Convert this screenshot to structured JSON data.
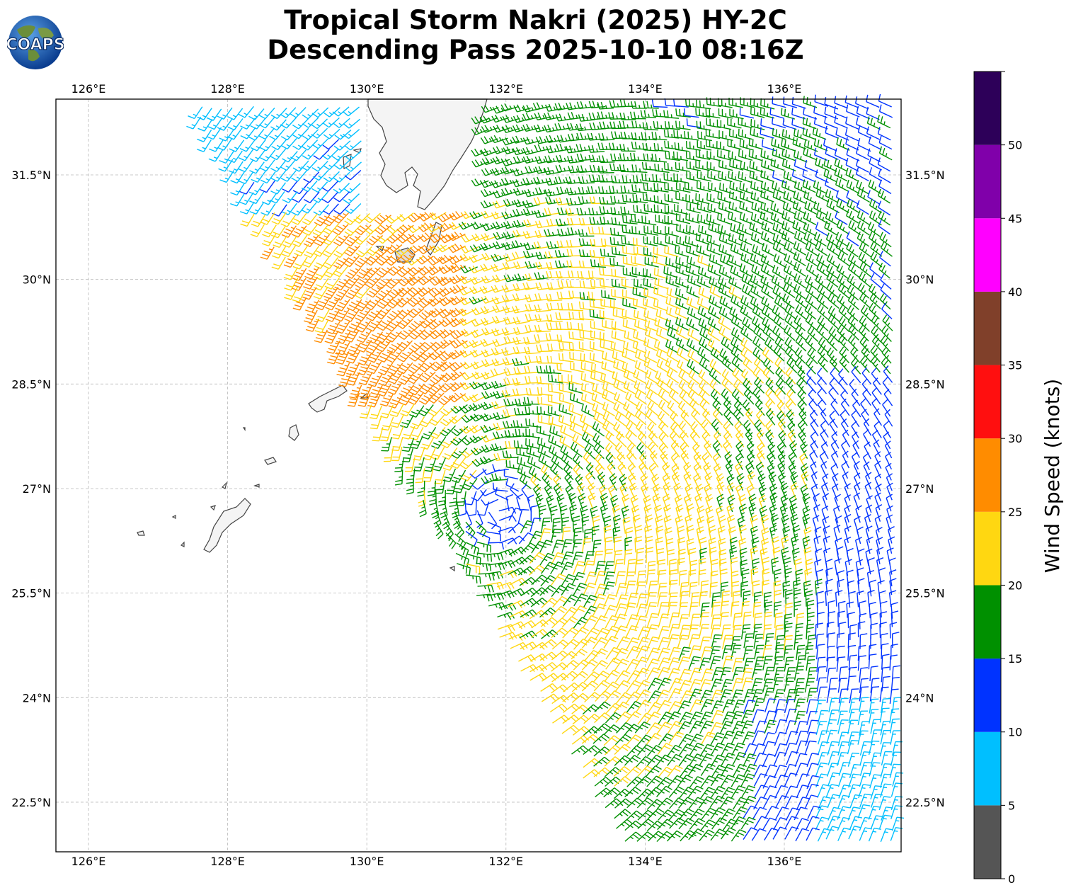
{
  "title": "Tropical Storm Nakri (2025) HY-2C",
  "subtitle": "Descending Pass 2025-10-10 08:16Z",
  "logo_text": "COAPS",
  "map": {
    "lon_ticks": [
      "126°E",
      "128°E",
      "130°E",
      "132°E",
      "134°E",
      "136°E"
    ],
    "lat_ticks": [
      "31.5°N",
      "30°N",
      "28.5°N",
      "27°N",
      "25.5°N",
      "24°N",
      "22.5°N"
    ],
    "lon_range": [
      125.5,
      137.7
    ],
    "lat_range": [
      21.8,
      32.7
    ],
    "land_color": "#f4f4f4",
    "coast_color": "#444444",
    "grid_color": "#b0b0b0",
    "storm_center_approx": {
      "lon": 131.9,
      "lat": 26.7
    }
  },
  "colorbar": {
    "label": "Wind Speed (knots)",
    "ticks": [
      "0",
      "5",
      "10",
      "15",
      "20",
      "25",
      "30",
      "35",
      "40",
      "45",
      "50"
    ],
    "bins": [
      {
        "from": 0,
        "to": 5,
        "color": "#555555"
      },
      {
        "from": 5,
        "to": 10,
        "color": "#00bfff"
      },
      {
        "from": 10,
        "to": 15,
        "color": "#0033ff"
      },
      {
        "from": 15,
        "to": 20,
        "color": "#009000"
      },
      {
        "from": 20,
        "to": 25,
        "color": "#ffd711"
      },
      {
        "from": 25,
        "to": 30,
        "color": "#ff8c00"
      },
      {
        "from": 30,
        "to": 35,
        "color": "#ff0f0f"
      },
      {
        "from": 35,
        "to": 40,
        "color": "#80402a"
      },
      {
        "from": 40,
        "to": 45,
        "color": "#ff00ff"
      },
      {
        "from": 45,
        "to": 50,
        "color": "#8000aa"
      },
      {
        "from": 50,
        "to": 55,
        "color": "#2d0059"
      }
    ]
  }
}
